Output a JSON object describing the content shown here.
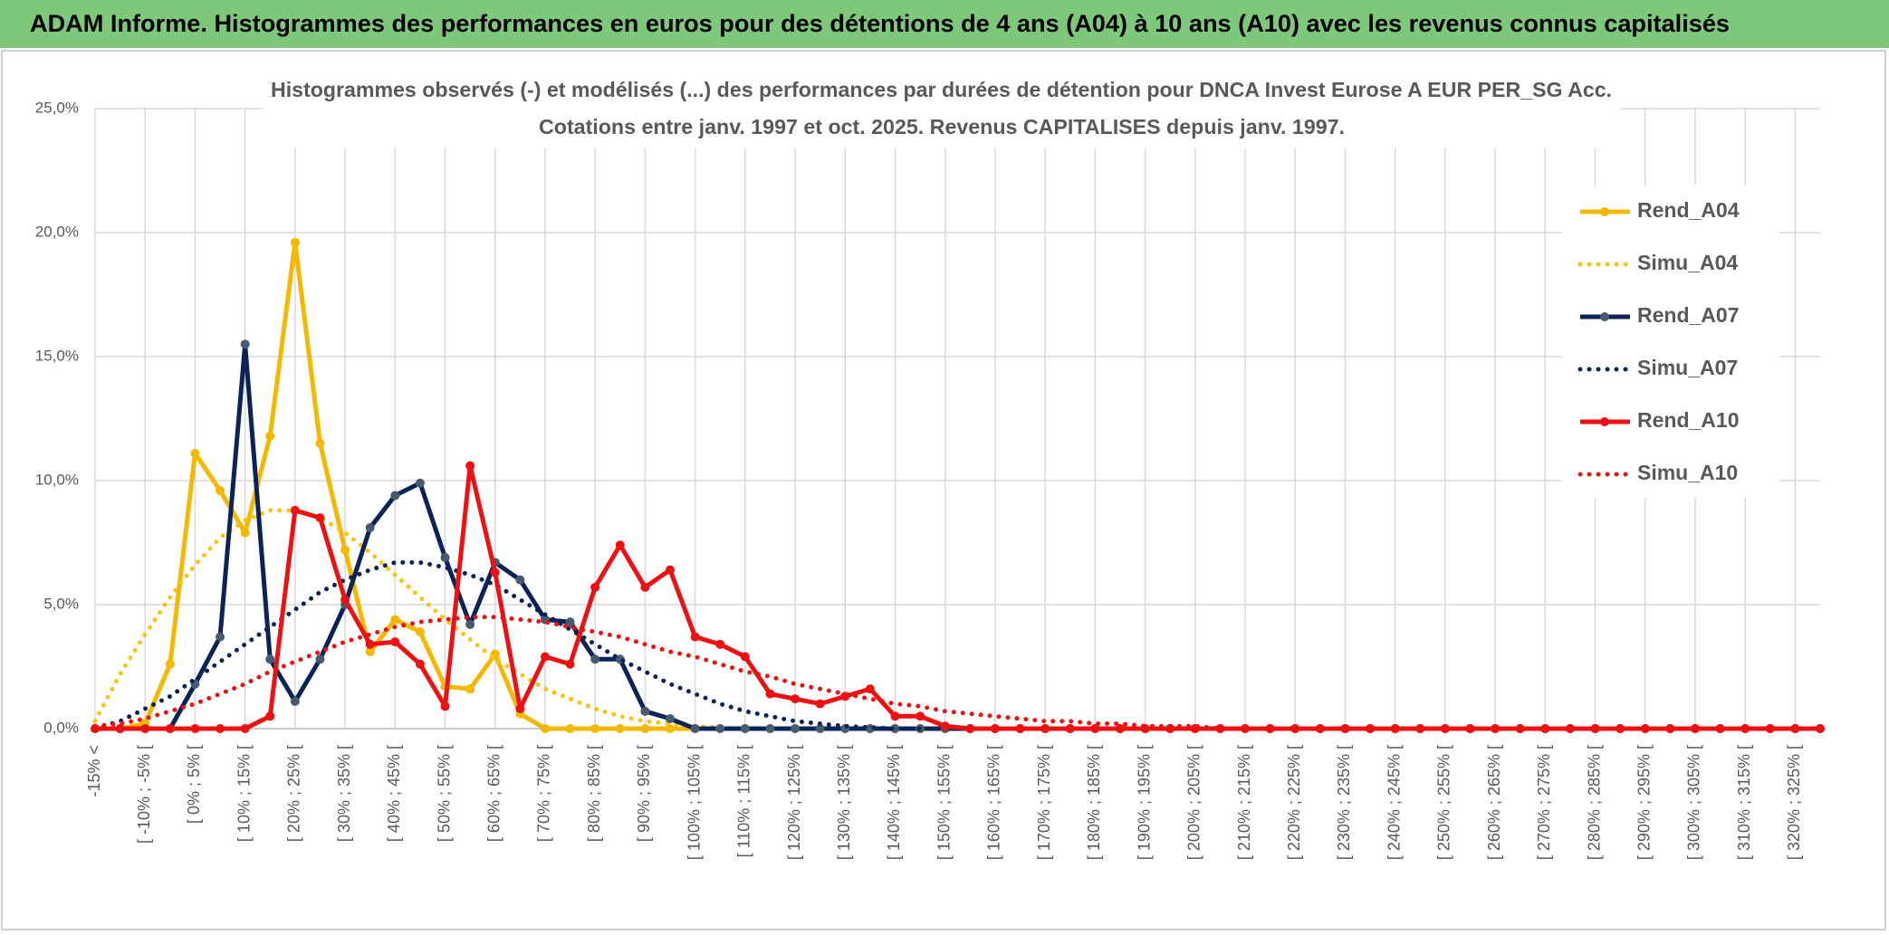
{
  "chart_data": {
    "type": "line",
    "title": "ADAM Informe. Histogrammes des performances en euros pour des détentions de 4 ans (A04) à 10 ans (A10) avec les revenus connus capitalisés",
    "subtitle": [
      "Histogrammes observés (-) et modélisés (...) des performances par durées de détention pour DNCA Invest Eurose A EUR PER_SG Acc.",
      "Cotations entre janv. 1997 et oct. 2025. Revenus CAPITALISES depuis janv. 1997."
    ],
    "categories": [
      "-15% <",
      null,
      "[ -10% ; -5% [",
      null,
      "[ 0% ; 5% [",
      null,
      "[ 10% ; 15% [",
      null,
      "[ 20% ; 25% [",
      null,
      "[ 30% ; 35% [",
      null,
      "[ 40% ; 45% [",
      null,
      "[ 50% ; 55% [",
      null,
      "[ 60% ; 65% [",
      null,
      "[ 70% ; 75% [",
      null,
      "[ 80% ; 85% [",
      null,
      "[ 90% ; 95% [",
      null,
      "[ 100% ; 105% [",
      null,
      "[ 110% ; 115% [",
      null,
      "[ 120% ; 125% [",
      null,
      "[ 130% ; 135% [",
      null,
      "[ 140% ; 145% [",
      null,
      "[ 150% ; 155% [",
      null,
      "[ 160% ; 165% [",
      null,
      "[ 170% ; 175% [",
      null,
      "[ 180% ; 185% [",
      null,
      "[ 190% ; 195% [",
      null,
      "[ 200% ; 205% [",
      null,
      "[ 210% ; 215% [",
      null,
      "[ 220% ; 225% [",
      null,
      "[ 230% ; 235% [",
      null,
      "[ 240% ; 245% [",
      null,
      "[ 250% ; 255% [",
      null,
      "[ 260% ; 265% [",
      null,
      "[ 270% ; 275% [",
      null,
      "[ 280% ; 285% [",
      null,
      "[ 290% ; 295% [",
      null,
      "[ 300% ; 305% [",
      null,
      "[ 310% ; 315% [",
      null,
      "[ 320% ; 325% [",
      null
    ],
    "series": [
      {
        "name": "Rend_A04",
        "color": "#f5b800",
        "marker_color": "#f5b800",
        "style": "solid",
        "values": [
          0,
          0,
          0.2,
          2.6,
          11.1,
          9.6,
          7.9,
          11.8,
          19.6,
          11.5,
          7.2,
          3.1,
          4.4,
          3.9,
          1.7,
          1.6,
          3.0,
          0.6,
          0,
          0,
          0,
          0,
          0,
          0,
          0,
          0,
          0,
          0,
          0,
          0,
          0,
          0,
          0,
          0,
          0,
          0,
          0,
          0,
          0,
          0,
          0,
          0,
          0,
          0,
          0,
          0,
          0,
          0,
          0,
          0,
          0,
          0,
          0,
          0,
          0,
          0,
          0,
          0,
          0,
          0,
          0,
          0,
          0,
          0,
          0,
          0,
          0,
          0,
          0,
          0
        ]
      },
      {
        "name": "Simu_A04",
        "color": "#f5c518",
        "style": "dotted",
        "values": [
          0.3,
          2.2,
          3.8,
          5.3,
          6.6,
          7.7,
          8.4,
          8.8,
          8.8,
          8.5,
          7.9,
          7.1,
          6.2,
          5.3,
          4.4,
          3.6,
          2.8,
          2.2,
          1.6,
          1.2,
          0.8,
          0.5,
          0.3,
          0.2,
          0.1,
          0.05,
          0,
          0,
          0,
          0,
          0,
          0,
          0,
          0,
          0,
          0,
          0,
          0,
          0,
          0,
          0,
          0,
          0,
          0,
          0,
          0,
          0,
          0,
          0,
          0,
          0,
          0,
          0,
          0,
          0,
          0,
          0,
          0,
          0,
          0,
          0,
          0,
          0,
          0,
          0,
          0,
          0,
          0,
          0,
          0
        ]
      },
      {
        "name": "Rend_A07",
        "color": "#0c2358",
        "marker_color": "#485a70",
        "style": "solid",
        "values": [
          0,
          0,
          0,
          0,
          1.8,
          3.7,
          15.5,
          2.8,
          1.1,
          2.8,
          5.0,
          8.1,
          9.4,
          9.9,
          6.9,
          4.2,
          6.7,
          6.0,
          4.4,
          4.3,
          2.8,
          2.8,
          0.7,
          0.4,
          0,
          0,
          0,
          0,
          0,
          0,
          0,
          0,
          0,
          0,
          0,
          0,
          0,
          0,
          0,
          0,
          0,
          0,
          0,
          0,
          0,
          0,
          0,
          0,
          0,
          0,
          0,
          0,
          0,
          0,
          0,
          0,
          0,
          0,
          0,
          0,
          0,
          0,
          0,
          0,
          0,
          0,
          0,
          0,
          0,
          0
        ]
      },
      {
        "name": "Simu_A07",
        "color": "#0c2358",
        "style": "dotted",
        "values": [
          0,
          0.3,
          0.8,
          1.3,
          2.0,
          2.7,
          3.4,
          4.1,
          4.8,
          5.5,
          6.0,
          6.4,
          6.7,
          6.7,
          6.5,
          6.2,
          5.8,
          5.2,
          4.6,
          4.0,
          3.4,
          2.8,
          2.3,
          1.8,
          1.4,
          1.0,
          0.7,
          0.5,
          0.3,
          0.2,
          0.1,
          0.05,
          0,
          0,
          0,
          0,
          0,
          0,
          0,
          0,
          0,
          0,
          0,
          0,
          0,
          0,
          0,
          0,
          0,
          0,
          0,
          0,
          0,
          0,
          0,
          0,
          0,
          0,
          0,
          0,
          0,
          0,
          0,
          0,
          0,
          0,
          0,
          0,
          0,
          0
        ]
      },
      {
        "name": "Rend_A10",
        "color": "#ee1111",
        "marker_color": "#ee1111",
        "style": "solid",
        "values": [
          0,
          0,
          0,
          0,
          0,
          0,
          0,
          0.5,
          8.8,
          8.5,
          5.2,
          3.4,
          3.5,
          2.6,
          0.9,
          10.6,
          6.3,
          0.8,
          2.9,
          2.6,
          5.7,
          7.4,
          5.7,
          6.4,
          3.7,
          3.4,
          2.9,
          1.4,
          1.2,
          1.0,
          1.3,
          1.6,
          0.5,
          0.5,
          0.1,
          0,
          0,
          0,
          0,
          0,
          0,
          0,
          0,
          0,
          0,
          0,
          0,
          0,
          0,
          0,
          0,
          0,
          0,
          0,
          0,
          0,
          0,
          0,
          0,
          0,
          0,
          0,
          0,
          0,
          0,
          0,
          0,
          0,
          0,
          0
        ]
      },
      {
        "name": "Simu_A10",
        "color": "#ee1111",
        "style": "dotted",
        "values": [
          0.1,
          0.2,
          0.4,
          0.7,
          1.0,
          1.4,
          1.8,
          2.3,
          2.7,
          3.1,
          3.5,
          3.8,
          4.1,
          4.3,
          4.4,
          4.5,
          4.5,
          4.4,
          4.3,
          4.1,
          3.9,
          3.7,
          3.4,
          3.1,
          2.9,
          2.6,
          2.3,
          2.1,
          1.8,
          1.6,
          1.4,
          1.2,
          1.0,
          0.9,
          0.7,
          0.6,
          0.5,
          0.4,
          0.3,
          0.3,
          0.2,
          0.2,
          0.1,
          0.1,
          0.1,
          0,
          0,
          0,
          0,
          0,
          0,
          0,
          0,
          0,
          0,
          0,
          0,
          0,
          0,
          0,
          0,
          0,
          0,
          0,
          0,
          0,
          0,
          0,
          0,
          0
        ]
      }
    ],
    "ylim": [
      0,
      25
    ],
    "yticks": [
      {
        "value": 0,
        "label": "0,0%"
      },
      {
        "value": 5,
        "label": "5,0%"
      },
      {
        "value": 10,
        "label": "10,0%"
      },
      {
        "value": 15,
        "label": "15,0%"
      },
      {
        "value": 20,
        "label": "20,0%"
      },
      {
        "value": 25,
        "label": "25,0%"
      }
    ],
    "grid": true,
    "legend": "right"
  }
}
